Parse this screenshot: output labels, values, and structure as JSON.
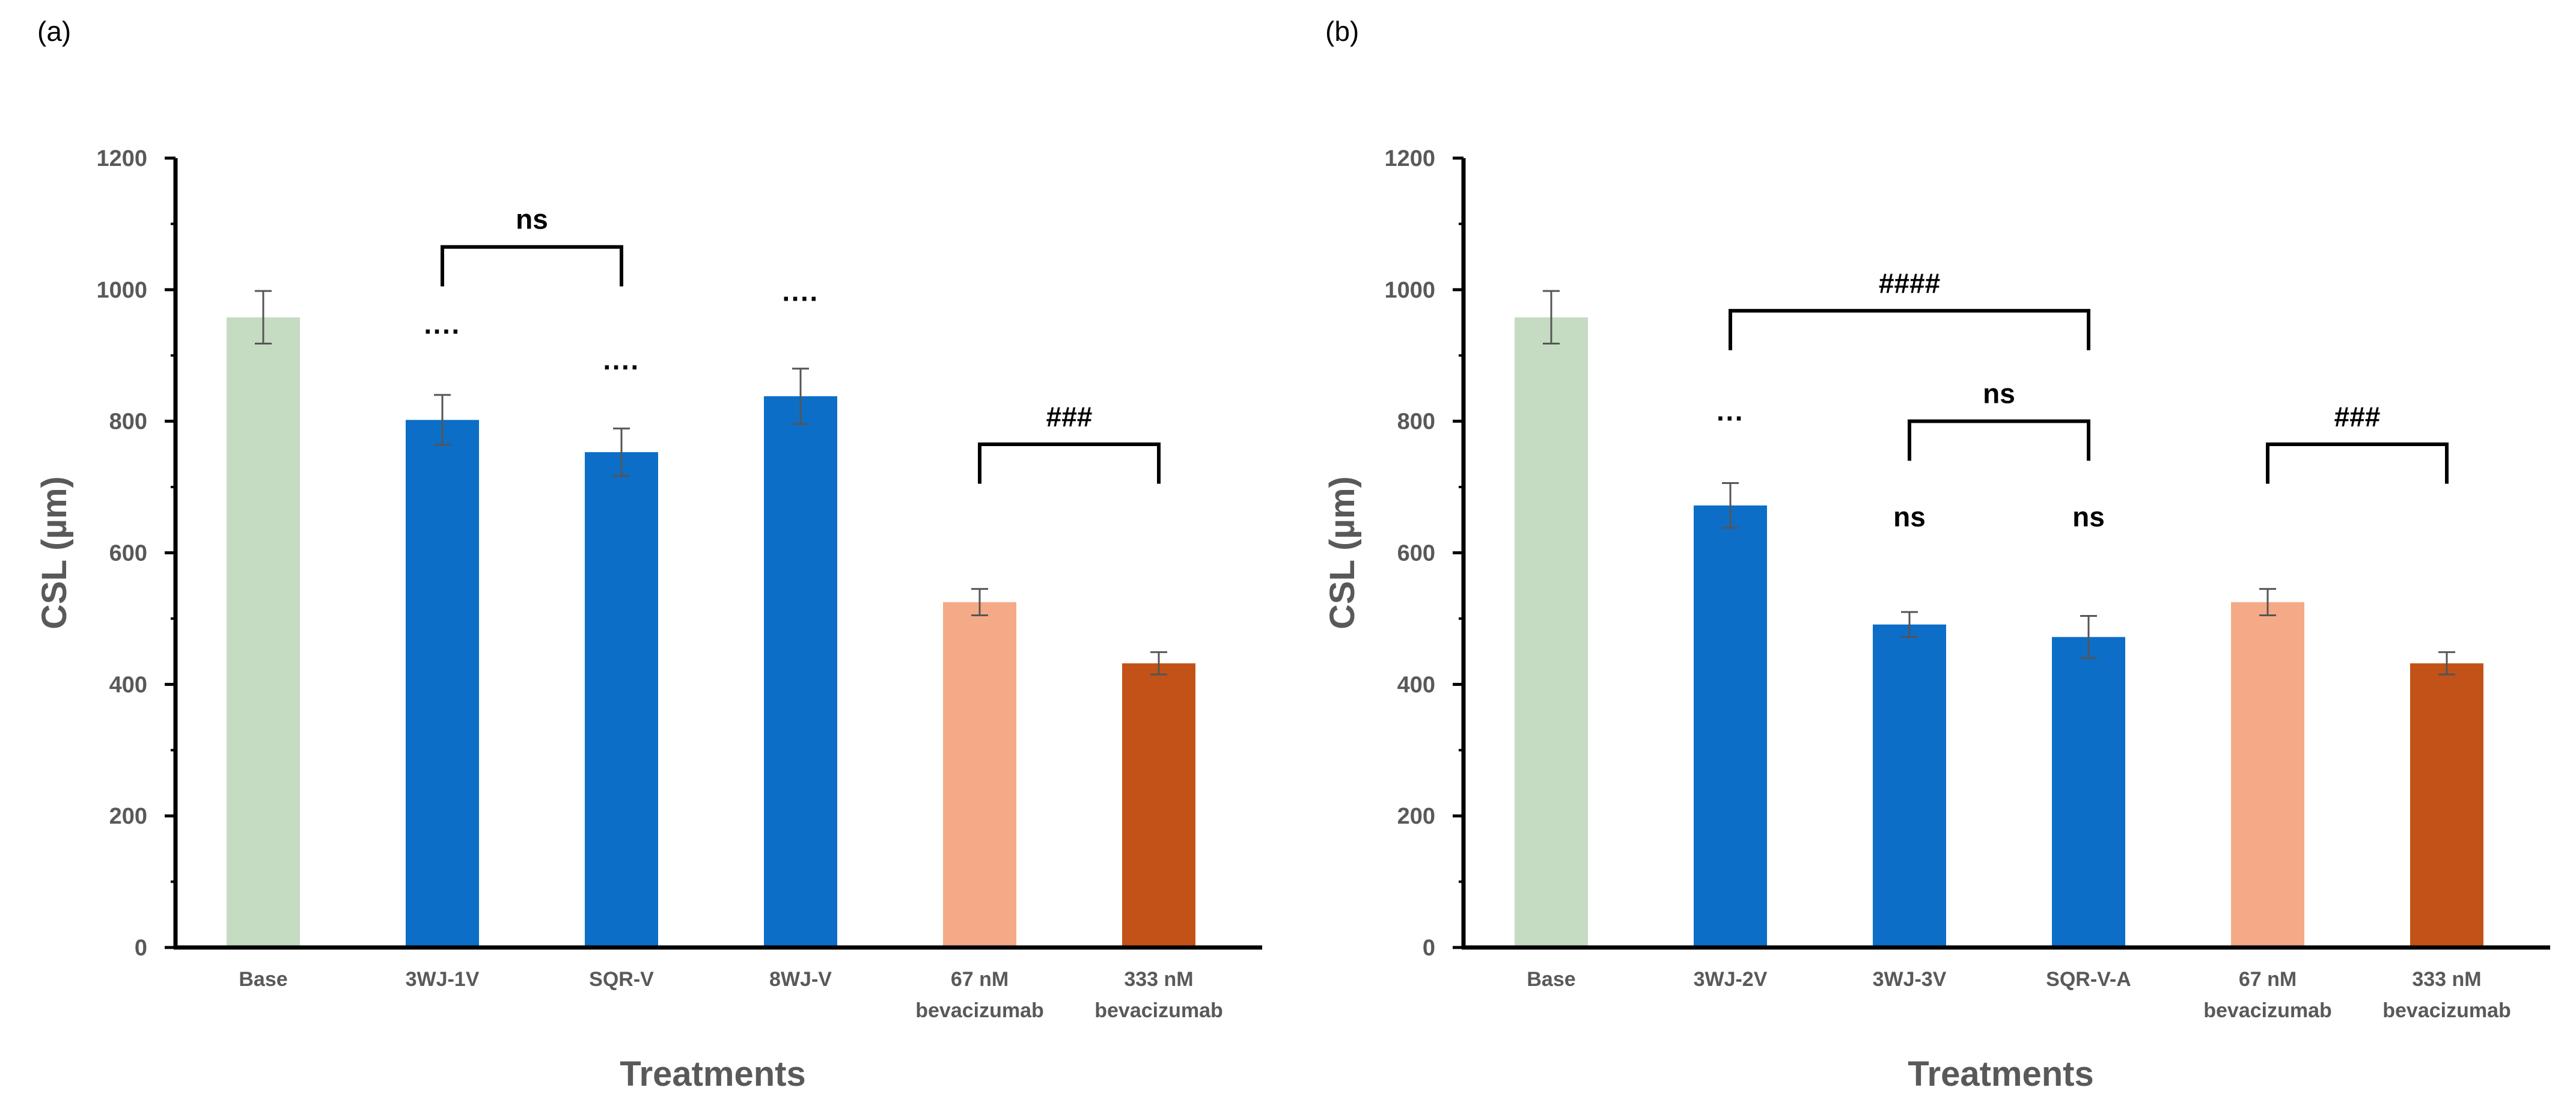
{
  "chart_data": [
    {
      "type": "bar",
      "panel_label": "(a)",
      "xlabel": "Treatments",
      "ylabel": "CSL (µm)",
      "ylim": [
        0,
        1200
      ],
      "yticks": [
        0,
        200,
        400,
        600,
        800,
        1000,
        1200
      ],
      "categories": [
        {
          "name": "Base",
          "label_lines": [
            "Base"
          ],
          "value": 958,
          "error": 40,
          "color": "#c5dcc2"
        },
        {
          "name": "3WJ-1V",
          "label_lines": [
            "3WJ-1V"
          ],
          "value": 802,
          "error": 38,
          "color": "#0c6ec7"
        },
        {
          "name": "SQR-V",
          "label_lines": [
            "SQR-V"
          ],
          "value": 753,
          "error": 36,
          "color": "#0c6ec7"
        },
        {
          "name": "8WJ-V",
          "label_lines": [
            "8WJ-V"
          ],
          "value": 838,
          "error": 42,
          "color": "#0c6ec7"
        },
        {
          "name": "67 nM bevacizumab",
          "label_lines": [
            "67 nM",
            "bevacizumab"
          ],
          "value": 525,
          "error": 20,
          "color": "#f4aa86"
        },
        {
          "name": "333 nM bevacizumab",
          "label_lines": [
            "333 nM",
            "bevacizumab"
          ],
          "value": 432,
          "error": 17,
          "color": "#c25218"
        }
      ],
      "bar_annotations": [
        {
          "bar": 1,
          "text": "····",
          "at_value": 922
        },
        {
          "bar": 2,
          "text": "····",
          "at_value": 868
        },
        {
          "bar": 3,
          "text": "····",
          "at_value": 972
        }
      ],
      "brackets": [
        {
          "from": 1,
          "to": 2,
          "level": 1065,
          "drop_to": 1005,
          "label": "ns"
        },
        {
          "from": 4,
          "to": 5,
          "level": 765,
          "drop_to": 705,
          "label": "###"
        }
      ]
    },
    {
      "type": "bar",
      "panel_label": "(b)",
      "xlabel": "Treatments",
      "ylabel": "CSL (µm)",
      "ylim": [
        0,
        1200
      ],
      "yticks": [
        0,
        200,
        400,
        600,
        800,
        1000,
        1200
      ],
      "categories": [
        {
          "name": "Base",
          "label_lines": [
            "Base"
          ],
          "value": 958,
          "error": 40,
          "color": "#c5dcc2"
        },
        {
          "name": "3WJ-2V",
          "label_lines": [
            "3WJ-2V"
          ],
          "value": 672,
          "error": 34,
          "color": "#0c6ec7"
        },
        {
          "name": "3WJ-3V",
          "label_lines": [
            "3WJ-3V"
          ],
          "value": 491,
          "error": 19,
          "color": "#0c6ec7"
        },
        {
          "name": "SQR-V-A",
          "label_lines": [
            "SQR-V-A"
          ],
          "value": 472,
          "error": 32,
          "color": "#0c6ec7"
        },
        {
          "name": "67 nM bevacizumab",
          "label_lines": [
            "67 nM",
            "bevacizumab"
          ],
          "value": 525,
          "error": 20,
          "color": "#f4aa86"
        },
        {
          "name": "333 nM bevacizumab",
          "label_lines": [
            "333 nM",
            "bevacizumab"
          ],
          "value": 432,
          "error": 17,
          "color": "#c25218"
        }
      ],
      "bar_annotations": [
        {
          "bar": 1,
          "text": "···",
          "at_value": 790
        },
        {
          "bar": 2,
          "text": "ns",
          "at_value": 640
        },
        {
          "bar": 3,
          "text": "ns",
          "at_value": 640
        }
      ],
      "brackets": [
        {
          "from": 1,
          "to": 3,
          "level": 968,
          "drop_to": 908,
          "label": "####"
        },
        {
          "from": 2,
          "to": 3,
          "level": 800,
          "drop_to": 740,
          "label": "ns"
        },
        {
          "from": 4,
          "to": 5,
          "level": 765,
          "drop_to": 705,
          "label": "###"
        }
      ]
    }
  ]
}
